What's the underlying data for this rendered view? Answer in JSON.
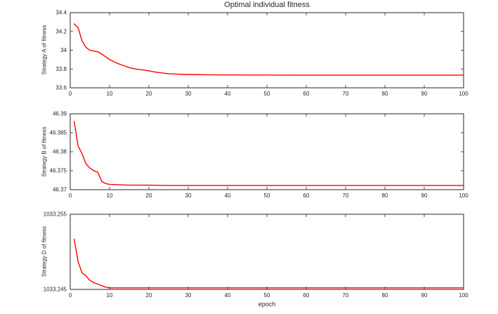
{
  "title": "Optimal individual fitness",
  "axis_color": "#262626",
  "chart_data": [
    {
      "type": "line",
      "ylabel": "Strategy A of fitness",
      "xlabel": "",
      "xlim": [
        0,
        100
      ],
      "ylim": [
        33.6,
        34.4
      ],
      "xticks": [
        0,
        10,
        20,
        30,
        40,
        50,
        60,
        70,
        80,
        90,
        100
      ],
      "yticks": [
        33.6,
        33.8,
        34,
        34.2,
        34.4
      ],
      "ytick_labels": [
        "33.6",
        "33.8",
        "34",
        "34.2",
        "34.4"
      ],
      "grid": false,
      "legend": null,
      "series": [
        {
          "name": "optimal individual fitness (Strategy A)",
          "color": "#ff0000",
          "x": [
            1,
            2,
            3,
            4,
            5,
            6,
            7,
            8,
            9,
            10,
            11,
            12,
            13,
            14,
            15,
            16,
            17,
            18,
            19,
            20,
            22,
            25,
            28,
            30,
            35,
            40,
            50,
            60,
            70,
            80,
            90,
            100
          ],
          "y": [
            34.28,
            34.24,
            34.1,
            34.03,
            34.0,
            33.99,
            33.985,
            33.96,
            33.93,
            33.9,
            33.88,
            33.86,
            33.845,
            33.83,
            33.815,
            33.805,
            33.798,
            33.792,
            33.787,
            33.78,
            33.765,
            33.75,
            33.744,
            33.742,
            33.739,
            33.737,
            33.736,
            33.735,
            33.735,
            33.735,
            33.735,
            33.735
          ]
        }
      ]
    },
    {
      "type": "line",
      "ylabel": "Strategy B of fitness",
      "xlabel": "",
      "xlim": [
        0,
        100
      ],
      "ylim": [
        46.37,
        46.39
      ],
      "xticks": [
        0,
        10,
        20,
        30,
        40,
        50,
        60,
        70,
        80,
        90,
        100
      ],
      "yticks": [
        46.37,
        46.375,
        46.38,
        46.385,
        46.39
      ],
      "ytick_labels": [
        "46.37",
        "46.375",
        "46.38",
        "46.385",
        "46.39"
      ],
      "grid": false,
      "legend": null,
      "series": [
        {
          "name": "optimal individual fitness (Strategy B)",
          "color": "#ff0000",
          "x": [
            1,
            2,
            3,
            4,
            5,
            6,
            7,
            8,
            9,
            10,
            12,
            15,
            20,
            25,
            30,
            40,
            50,
            60,
            70,
            80,
            90,
            100
          ],
          "y": [
            46.388,
            46.3815,
            46.3795,
            46.3768,
            46.3757,
            46.375,
            46.3746,
            46.3722,
            46.3716,
            46.3714,
            46.3713,
            46.3712,
            46.3712,
            46.3711,
            46.3711,
            46.3711,
            46.3711,
            46.3711,
            46.3711,
            46.3711,
            46.3711,
            46.3711
          ]
        }
      ]
    },
    {
      "type": "line",
      "ylabel": "Strategy D of fitness",
      "xlabel": "epoch",
      "xlim": [
        0,
        100
      ],
      "ylim": [
        1033.245,
        1033.255
      ],
      "xticks": [
        0,
        10,
        20,
        30,
        40,
        50,
        60,
        70,
        80,
        90,
        100
      ],
      "yticks": [
        1033.245,
        1033.255
      ],
      "ytick_labels": [
        "1033.245",
        "1033.255"
      ],
      "grid": false,
      "legend": null,
      "series": [
        {
          "name": "optimal individual fitness (Strategy D)",
          "color": "#ff0000",
          "x": [
            1,
            2,
            3,
            4,
            5,
            6,
            7,
            8,
            9,
            10,
            12,
            15,
            20,
            25,
            30,
            40,
            50,
            60,
            70,
            80,
            90,
            100
          ],
          "y": [
            1033.2517,
            1033.2487,
            1033.2472,
            1033.2468,
            1033.2462,
            1033.2459,
            1033.2457,
            1033.2455,
            1033.2453,
            1033.2452,
            1033.2452,
            1033.2452,
            1033.2452,
            1033.2452,
            1033.2452,
            1033.2452,
            1033.2452,
            1033.2452,
            1033.2452,
            1033.2452,
            1033.2452,
            1033.2452
          ]
        }
      ]
    }
  ]
}
